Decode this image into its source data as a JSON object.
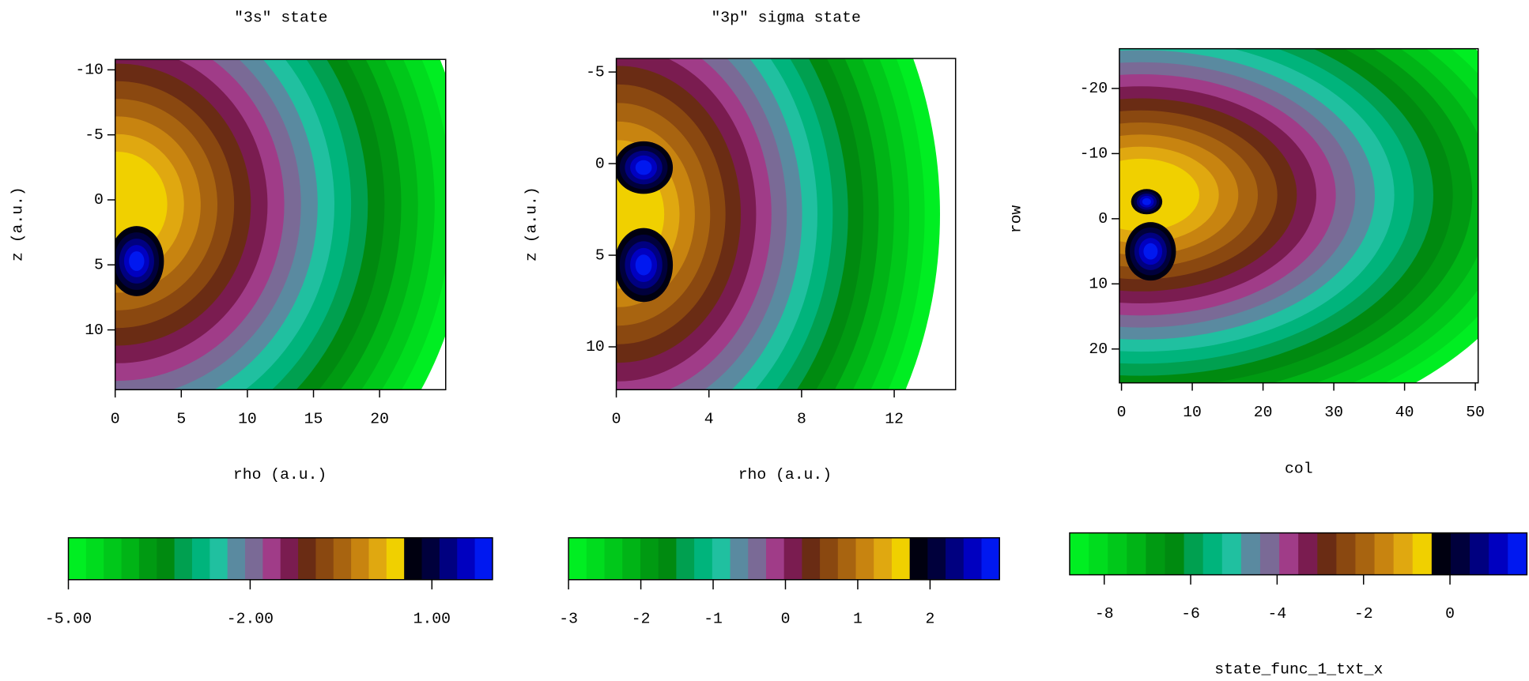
{
  "chart_data": [
    {
      "type": "contour",
      "title": "\"3s\"  state",
      "xlabel": "rho  (a.u.)",
      "ylabel": "z  (a.u.)",
      "xlim": [
        0,
        25
      ],
      "ylim": [
        -10.8,
        14.6
      ],
      "xticks": [
        0,
        5,
        10,
        15,
        20
      ],
      "yticks": [
        -10,
        -5,
        0,
        5,
        10
      ],
      "colors": [
        "#00ee22",
        "#00dc1e",
        "#00c81a",
        "#00b416",
        "#009a12",
        "#008a10",
        "#00a050",
        "#00b47c",
        "#20c0a0",
        "#5a8aa0",
        "#7a6a96",
        "#a03c88",
        "#7a1c50",
        "#6a2c14",
        "#8a4810",
        "#a86410",
        "#c88410",
        "#e0a810",
        "#f0d000",
        "#000010",
        "#00003c",
        "#000080",
        "#0000c0",
        "#0018f0"
      ],
      "colorbar": {
        "clim": [
          -5,
          2.0
        ],
        "ticks": [
          {
            "value": -5,
            "label": "-5.00"
          },
          {
            "value": -2,
            "label": "-2.00"
          },
          {
            "value": 1,
            "label": "1.00"
          }
        ]
      }
    },
    {
      "type": "contour",
      "title": "\"3p\" sigma state",
      "xlabel": "rho  (a.u.)",
      "ylabel": "z  (a.u.)",
      "xlim": [
        0,
        14.65
      ],
      "ylim": [
        -5.74,
        12.34
      ],
      "xticks": [
        0,
        4,
        8,
        12
      ],
      "yticks": [
        -5,
        0,
        5,
        10
      ],
      "colors": [
        "#00ee22",
        "#00dc1e",
        "#00c81a",
        "#00b416",
        "#009a12",
        "#008a10",
        "#00a050",
        "#00b47c",
        "#20c0a0",
        "#5a8aa0",
        "#7a6a96",
        "#a03c88",
        "#7a1c50",
        "#6a2c14",
        "#8a4810",
        "#a86410",
        "#c88410",
        "#e0a810",
        "#f0d000",
        "#000010",
        "#00003c",
        "#000080",
        "#0000c0",
        "#0018f0"
      ],
      "colorbar": {
        "clim": [
          -3,
          2.96
        ],
        "ticks": [
          -3,
          -2,
          -1,
          0,
          1,
          2
        ]
      }
    },
    {
      "type": "contour",
      "xlabel": "col",
      "ylabel": "row",
      "xlim": [
        -0.3,
        50.4
      ],
      "ylim": [
        -26.1,
        25.2
      ],
      "xticks": [
        0,
        10,
        20,
        30,
        40,
        50
      ],
      "yticks": [
        -20,
        -10,
        0,
        10,
        20
      ],
      "colors": [
        "#00ee22",
        "#00dc1e",
        "#00c81a",
        "#00b416",
        "#009a12",
        "#008a10",
        "#00a050",
        "#00b47c",
        "#20c0a0",
        "#5a8aa0",
        "#7a6a96",
        "#a03c88",
        "#7a1c50",
        "#6a2c14",
        "#8a4810",
        "#a86410",
        "#c88410",
        "#e0a810",
        "#f0d000",
        "#000010",
        "#00003c",
        "#000080",
        "#0000c0",
        "#0018f0"
      ],
      "colorbar": {
        "clim": [
          -8.8,
          1.78
        ],
        "ticks": [
          -8,
          -6,
          -4,
          -2,
          0
        ],
        "label": "state_func_1_txt_x"
      }
    }
  ]
}
